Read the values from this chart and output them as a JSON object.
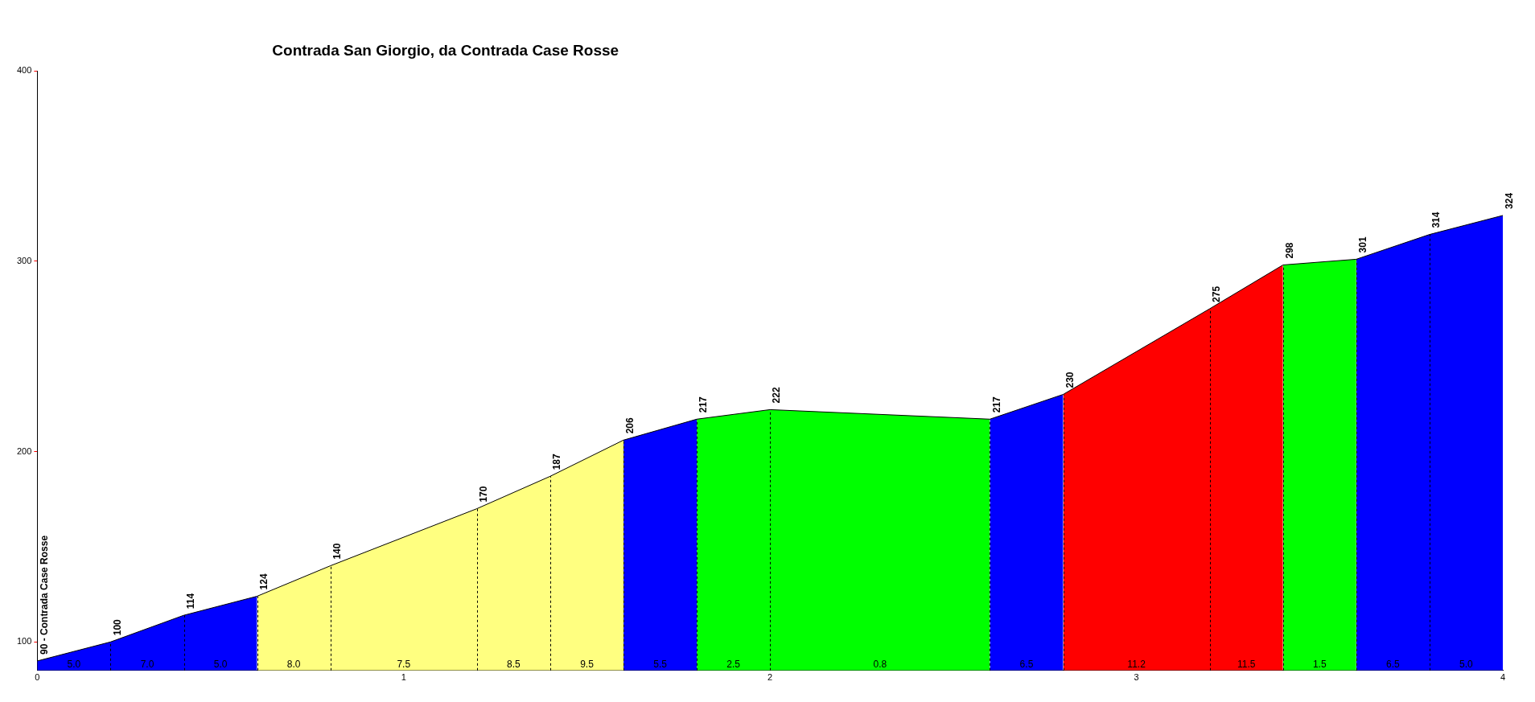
{
  "chart_data": {
    "type": "area",
    "title": "Contrada San Giorgio, da Contrada Case Rosse",
    "series": [
      {
        "color": "#0000ff",
        "x": [
          0,
          0.2,
          0.4,
          0.6
        ],
        "values": [
          90,
          100,
          114,
          124
        ],
        "value_labels": [
          "90 - Contrada Case Rosse",
          "100",
          "114",
          "124"
        ]
      },
      {
        "color": "#ffff80",
        "x": [
          0.6,
          0.8,
          1.2,
          1.4,
          1.6
        ],
        "values": [
          124,
          140,
          170,
          187,
          206
        ],
        "value_labels": [
          null,
          "140",
          "170",
          "187",
          "206"
        ]
      },
      {
        "color": "#0000ff",
        "x": [
          1.6,
          1.8
        ],
        "values": [
          206,
          217
        ],
        "value_labels": [
          null,
          "217"
        ]
      },
      {
        "color": "#00ff00",
        "x": [
          1.8,
          2.0,
          2.6
        ],
        "values": [
          217,
          222,
          217
        ],
        "value_labels": [
          null,
          "222",
          "217"
        ]
      },
      {
        "color": "#0000ff",
        "x": [
          2.6,
          2.8
        ],
        "values": [
          217,
          230
        ],
        "value_labels": [
          null,
          "230"
        ]
      },
      {
        "color": "#ff0000",
        "x": [
          2.8,
          3.2,
          3.4
        ],
        "values": [
          230,
          275,
          298
        ],
        "value_labels": [
          null,
          "275",
          "298"
        ]
      },
      {
        "color": "#00ff00",
        "x": [
          3.4,
          3.6
        ],
        "values": [
          298,
          301
        ],
        "value_labels": [
          null,
          "301"
        ]
      },
      {
        "color": "#0000ff",
        "x": [
          3.6,
          3.8,
          4.0
        ],
        "values": [
          301,
          314,
          324
        ],
        "value_labels": [
          null,
          "314",
          "324"
        ]
      }
    ],
    "annotations": [
      "5.0",
      "7.0",
      "5.0",
      "8.0",
      "7.5",
      "8.5",
      "9.5",
      "5.5",
      "2.5",
      "0.8",
      "6.5",
      "11.2",
      "11.5",
      "1.5",
      "6.5",
      "5.0"
    ],
    "xlim": [
      0,
      4
    ],
    "xticks": [
      0,
      1,
      2,
      3,
      4
    ],
    "ylim": [
      85,
      400
    ],
    "yticks": [
      100,
      200,
      300,
      400
    ],
    "grid": false,
    "legend": false,
    "marker": "none",
    "line_style": "solid"
  }
}
